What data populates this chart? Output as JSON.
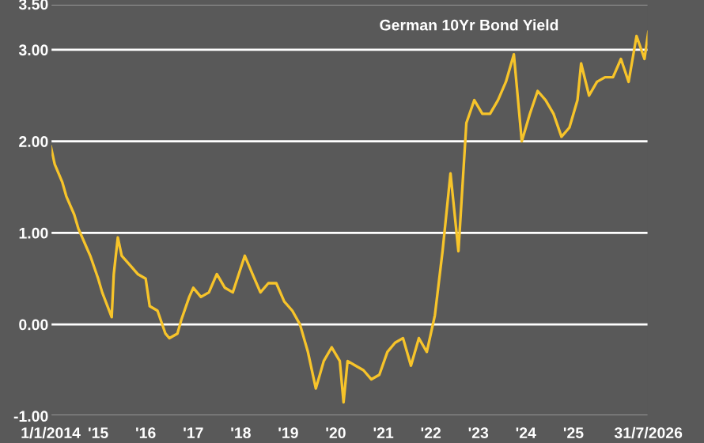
{
  "chart_data": {
    "type": "line",
    "title": "German 10Yr Bond Yield",
    "x": [
      "2014-01-01",
      "2014-02",
      "2014-04",
      "2014-05",
      "2014-07",
      "2014-08",
      "2014-10",
      "2014-11",
      "2015-01",
      "2015-02",
      "2015-04-15",
      "2015-05",
      "2015-06",
      "2015-07",
      "2015-09",
      "2015-11",
      "2016-01",
      "2016-02",
      "2016-04",
      "2016-06",
      "2016-07",
      "2016-09",
      "2016-10",
      "2016-12",
      "2017-01",
      "2017-03",
      "2017-05",
      "2017-07",
      "2017-09",
      "2017-11",
      "2018-02",
      "2018-04",
      "2018-06",
      "2018-08",
      "2018-10",
      "2018-12",
      "2019-02",
      "2019-04",
      "2019-06",
      "2019-08",
      "2019-10",
      "2019-12",
      "2020-02",
      "2020-03",
      "2020-04",
      "2020-06",
      "2020-08",
      "2020-10",
      "2020-12",
      "2021-02",
      "2021-04",
      "2021-06",
      "2021-08",
      "2021-10",
      "2021-12",
      "2022-02",
      "2022-04",
      "2022-06",
      "2022-08",
      "2022-10",
      "2022-12",
      "2023-02",
      "2023-04",
      "2023-06",
      "2023-08",
      "2023-10",
      "2023-12",
      "2024-02",
      "2024-04",
      "2024-06",
      "2024-08",
      "2024-10",
      "2024-12",
      "2025-02",
      "2025-03",
      "2025-05",
      "2025-07",
      "2025-09",
      "2025-11",
      "2026-01",
      "2026-03",
      "2026-05",
      "2026-07",
      "2026-07-31"
    ],
    "series": [
      {
        "color": "#f7c42a",
        "values": [
          1.95,
          1.75,
          1.55,
          1.4,
          1.2,
          1.05,
          0.85,
          0.75,
          0.5,
          0.35,
          0.08,
          0.55,
          0.95,
          0.75,
          0.65,
          0.55,
          0.5,
          0.2,
          0.15,
          -0.1,
          -0.15,
          -0.1,
          0.05,
          0.3,
          0.4,
          0.3,
          0.35,
          0.55,
          0.4,
          0.35,
          0.75,
          0.55,
          0.35,
          0.45,
          0.45,
          0.25,
          0.15,
          0.0,
          -0.3,
          -0.7,
          -0.4,
          -0.25,
          -0.4,
          -0.85,
          -0.4,
          -0.45,
          -0.5,
          -0.6,
          -0.55,
          -0.3,
          -0.2,
          -0.15,
          -0.45,
          -0.15,
          -0.3,
          0.1,
          0.8,
          1.65,
          0.8,
          2.2,
          2.45,
          2.3,
          2.3,
          2.45,
          2.65,
          2.95,
          2.0,
          2.3,
          2.55,
          2.45,
          2.3,
          2.05,
          2.15,
          2.45,
          2.85,
          2.5,
          2.65,
          2.7,
          2.7,
          2.9,
          2.65,
          3.15,
          2.9,
          3.2
        ]
      }
    ],
    "xlim": [
      "2014-01-01",
      "2026-07-31"
    ],
    "xticks": [
      {
        "value": "2014-01-01",
        "label": "1/1/2014"
      },
      {
        "value": "2015-01-01",
        "label": "'15"
      },
      {
        "value": "2016-01-01",
        "label": "'16"
      },
      {
        "value": "2017-01-01",
        "label": "'17"
      },
      {
        "value": "2018-01-01",
        "label": "'18"
      },
      {
        "value": "2019-01-01",
        "label": "'19"
      },
      {
        "value": "2020-01-01",
        "label": "'20"
      },
      {
        "value": "2021-01-01",
        "label": "'21"
      },
      {
        "value": "2022-01-01",
        "label": "'22"
      },
      {
        "value": "2023-01-01",
        "label": "'23"
      },
      {
        "value": "2024-01-01",
        "label": "'24"
      },
      {
        "value": "2025-01-01",
        "label": "'25"
      },
      {
        "value": "2026-07-31",
        "label": "31/7/2026"
      }
    ],
    "ylim": [
      -1,
      3.5
    ],
    "yticks": [
      {
        "value": 3.5,
        "label": "3.50"
      },
      {
        "value": 3,
        "label": "3.00"
      },
      {
        "value": 2,
        "label": "2.00"
      },
      {
        "value": 1,
        "label": "1.00"
      },
      {
        "value": 0,
        "label": "0.00"
      },
      {
        "value": -1,
        "label": "-1.00"
      }
    ],
    "grid": "y",
    "legend": false,
    "marker": "none",
    "line_style": "solid"
  }
}
